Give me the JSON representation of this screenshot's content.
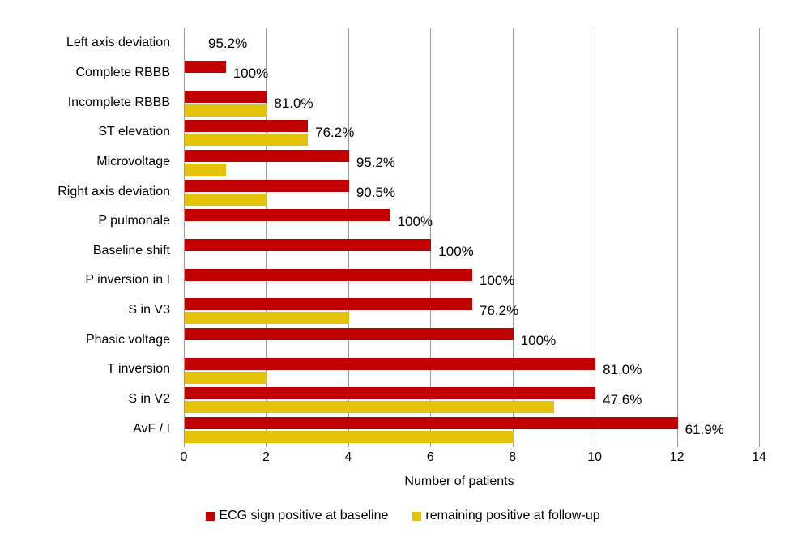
{
  "chart_data": {
    "type": "bar",
    "orientation": "horizontal",
    "title": "",
    "xlabel": "Number of patients",
    "xlim": [
      0,
      14
    ],
    "xticks": [
      "0",
      "2",
      "4",
      "6",
      "8",
      "10",
      "12",
      "14"
    ],
    "grid": true,
    "legend_position": "bottom",
    "series_meta": [
      {
        "name": "ECG sign positive at baseline",
        "color": "#C00000"
      },
      {
        "name": "remaining positive at follow-up",
        "color": "#E4C208"
      }
    ],
    "rows": [
      {
        "category": "Left axis deviation",
        "baseline": 0,
        "followup": null,
        "label": "95.2%"
      },
      {
        "category": "Complete RBBB",
        "baseline": 1,
        "followup": null,
        "label": "100%"
      },
      {
        "category": "Incomplete RBBB",
        "baseline": 2,
        "followup": 2,
        "label": "81.0%"
      },
      {
        "category": "ST elevation",
        "baseline": 3,
        "followup": 3,
        "label": "76.2%"
      },
      {
        "category": "Microvoltage",
        "baseline": 4,
        "followup": 1,
        "label": "95.2%"
      },
      {
        "category": "Right axis deviation",
        "baseline": 4,
        "followup": 2,
        "label": "90.5%"
      },
      {
        "category": "P pulmonale",
        "baseline": 5,
        "followup": null,
        "label": "100%"
      },
      {
        "category": "Baseline shift",
        "baseline": 6,
        "followup": null,
        "label": "100%"
      },
      {
        "category": "P inversion in I",
        "baseline": 7,
        "followup": null,
        "label": "100%"
      },
      {
        "category": "S in V3",
        "baseline": 7,
        "followup": 4,
        "label": "76.2%"
      },
      {
        "category": "Phasic voltage",
        "baseline": 8,
        "followup": null,
        "label": "100%"
      },
      {
        "category": "T inversion",
        "baseline": 10,
        "followup": 2,
        "label": "81.0%"
      },
      {
        "category": "S in V2",
        "baseline": 10,
        "followup": 9,
        "label": "47.6%"
      },
      {
        "category": "AvF / I",
        "baseline": 12,
        "followup": 8,
        "label": "61.9%"
      }
    ],
    "colors": {
      "baseline": "#C00000",
      "followup": "#E4C208",
      "gridline": "#9C9C9C",
      "text": "#000000",
      "background": "#FFFFFF"
    }
  }
}
